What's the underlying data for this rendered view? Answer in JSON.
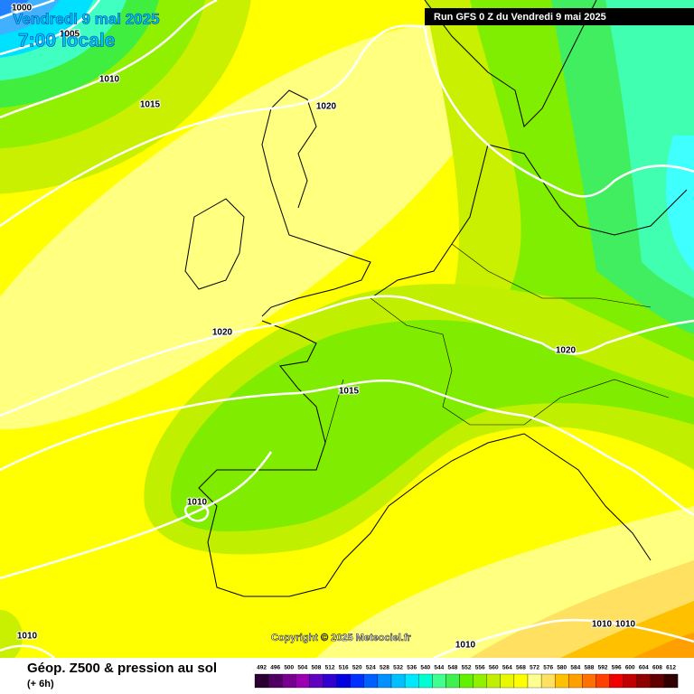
{
  "header": {
    "date": "Vendredi 9 mai 2025",
    "time": "7:00 locale",
    "run": "Run GFS 0 Z du Vendredi 9 mai 2025"
  },
  "isobars": [
    "1000",
    "1005",
    "1010",
    "1015",
    "1020",
    "1020",
    "1015",
    "1020",
    "1010",
    "1010",
    "1010",
    "1010",
    "1010"
  ],
  "copyright": "Copyright © 2025 Meteociel.fr",
  "footer": {
    "title": "Géop. Z500 & pression au sol",
    "lead": "(+ 6h)"
  },
  "scale": {
    "labels": [
      "492",
      "496",
      "500",
      "504",
      "508",
      "512",
      "516",
      "520",
      "524",
      "528",
      "532",
      "536",
      "540",
      "544",
      "548",
      "552",
      "556",
      "560",
      "564",
      "568",
      "572",
      "576",
      "580",
      "584",
      "588",
      "592",
      "596",
      "600",
      "604",
      "608",
      "612"
    ],
    "colors": [
      "#2a0030",
      "#500060",
      "#780090",
      "#9800b0",
      "#6000c0",
      "#3000d0",
      "#0000e0",
      "#0030ff",
      "#0060ff",
      "#0090ff",
      "#00c0ff",
      "#00e8ff",
      "#00ffd0",
      "#40ff90",
      "#40f050",
      "#60f000",
      "#90f000",
      "#c0f000",
      "#e8f800",
      "#ffff00",
      "#ffff90",
      "#ffe060",
      "#ffc000",
      "#ffa000",
      "#ff7000",
      "#ff4000",
      "#f00000",
      "#c00000",
      "#900000",
      "#600000",
      "#300000"
    ]
  }
}
